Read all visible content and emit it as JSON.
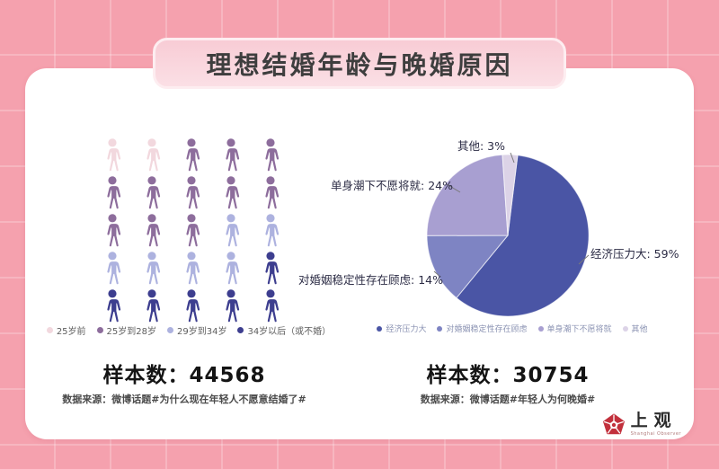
{
  "title": "理想结婚年龄与晚婚原因",
  "left_chart": {
    "legend": [
      {
        "label": "25岁前",
        "color": "#f2d8de"
      },
      {
        "label": "25岁到28岁",
        "color": "#8d6d9c"
      },
      {
        "label": "29岁到34岁",
        "color": "#adb2df"
      },
      {
        "label": "34岁以后（或不婚）",
        "color": "#3d3e8f"
      }
    ],
    "icon_categories": [
      0,
      0,
      1,
      1,
      1,
      1,
      1,
      1,
      1,
      1,
      1,
      1,
      1,
      2,
      2,
      2,
      2,
      2,
      2,
      3,
      3,
      3,
      3,
      3,
      3
    ],
    "sample_label": "样本数：44568",
    "source": "数据来源：微博话题#为什么现在年轻人不愿意结婚了#"
  },
  "pie_chart": {
    "callouts": {
      "other": "其他: 3%",
      "single": "单身潮下不愿将就: 24%",
      "stability": "对婚姻稳定性存在顾虑: 14%",
      "economic": "经济压力大: 59%"
    },
    "sample_label": "样本数：30754",
    "source": "数据来源：微博话题#年轻人为何晚婚#"
  },
  "chart_data": [
    {
      "type": "pictogram",
      "title": "理想结婚年龄",
      "categories": [
        "25岁前",
        "25岁到28岁",
        "29岁到34岁",
        "34岁以后（或不婚）"
      ],
      "values": [
        2,
        11,
        6,
        6
      ],
      "total_icons": 25,
      "percentages": [
        8,
        44,
        24,
        24
      ],
      "colors": [
        "#f2d8de",
        "#8d6d9c",
        "#adb2df",
        "#3d3e8f"
      ],
      "legend_position": "bottom",
      "sample_size": 44568
    },
    {
      "type": "pie",
      "title": "晚婚原因",
      "categories": [
        "经济压力大",
        "对婚姻稳定性存在顾虑",
        "单身潮下不愿将就",
        "其他"
      ],
      "values": [
        59,
        14,
        24,
        3
      ],
      "colors": [
        "#4a55a5",
        "#7e84c3",
        "#a89fd1",
        "#dcd3e7"
      ],
      "labels": "outside callouts",
      "legend_position": "bottom",
      "sample_size": 30754
    }
  ],
  "logo": {
    "name": "上观",
    "subtitle": "Shanghai Observer",
    "accent_color": "#c2303c"
  }
}
